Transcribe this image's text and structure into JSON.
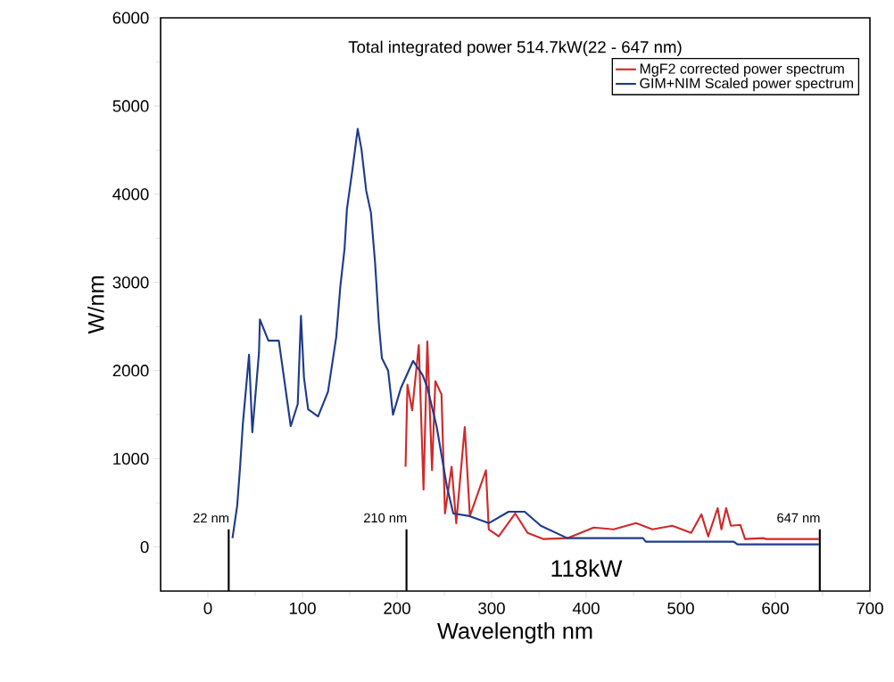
{
  "chart_data": {
    "type": "line",
    "title": "Total integrated power 514.7kW(22 - 647 nm)",
    "xlabel": "Wavelength nm",
    "ylabel": "W/nm",
    "xlim": [
      -50,
      700
    ],
    "ylim": [
      -500,
      6000
    ],
    "xticks": [
      0,
      100,
      200,
      300,
      400,
      500,
      600,
      700
    ],
    "yticks": [
      0,
      1000,
      2000,
      3000,
      4000,
      5000,
      6000
    ],
    "grid": false,
    "legend": "top right",
    "marker": "none",
    "line_style": "solid",
    "series": [
      {
        "name": "MgF2 corrected power spectrum",
        "color": "#d02a2a",
        "x": [
          209,
          211,
          216,
          223,
          228,
          232,
          237,
          240.5,
          247,
          250.7,
          257.7,
          262.6,
          271.6,
          277,
          294,
          297,
          307.5,
          325,
          338,
          355,
          380,
          408,
          429,
          452.7,
          470,
          491,
          511,
          521.8,
          529,
          539,
          543,
          548,
          553,
          563,
          568,
          587,
          590.5,
          646
        ],
        "values": [
          910,
          1840,
          1550,
          2290,
          650,
          2330,
          870,
          1880,
          1730,
          380,
          910,
          270,
          1360,
          350,
          870,
          200,
          120,
          380,
          160,
          90,
          100,
          220,
          200,
          270,
          200,
          240,
          160,
          370,
          120,
          440,
          200,
          440,
          240,
          250,
          90,
          100,
          90,
          90
        ]
      },
      {
        "name": "GIM+NIM Scaled power spectrum",
        "color": "#1f3b8c",
        "x": [
          26,
          31,
          34,
          37,
          43.5,
          47,
          54,
          55,
          64,
          75,
          87.6,
          95,
          98.4,
          101.6,
          106,
          116.5,
          127,
          135.7,
          140,
          144.5,
          147,
          153,
          158.4,
          162.4,
          167.4,
          172.4,
          176.8,
          180.8,
          184,
          190.6,
          195.7,
          204,
          217,
          227,
          232,
          242,
          252.6,
          259.5,
          276.7,
          297,
          318,
          335,
          352,
          380,
          460,
          463,
          556,
          560,
          646
        ],
        "values": [
          100,
          470,
          900,
          1400,
          2180,
          1300,
          2200,
          2580,
          2340,
          2340,
          1370,
          1620,
          2620,
          1920,
          1560,
          1480,
          1760,
          2380,
          2950,
          3380,
          3830,
          4290,
          4740,
          4510,
          4040,
          3790,
          3220,
          2530,
          2140,
          2000,
          1500,
          1800,
          2110,
          1950,
          1810,
          1360,
          690,
          380,
          350,
          270,
          400,
          400,
          240,
          100,
          100,
          60,
          60,
          30,
          30
        ]
      }
    ],
    "ref_lines": [
      {
        "axis": "x",
        "value": 22,
        "label": "22 nm",
        "color": "#000000"
      },
      {
        "axis": "x",
        "value": 210,
        "label": "210 nm",
        "color": "#000000"
      },
      {
        "axis": "x",
        "value": 647,
        "label": "647 nm",
        "color": "#000000"
      }
    ],
    "annotations": [
      "118kW"
    ]
  }
}
